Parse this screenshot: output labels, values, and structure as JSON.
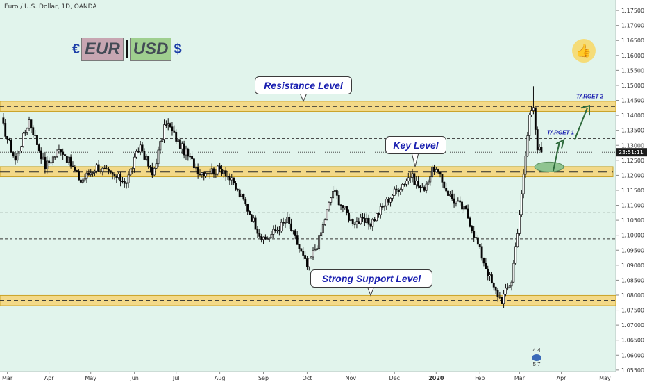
{
  "header": {
    "title": "Euro / U.S. Dollar, 1D, OANDA"
  },
  "logo": {
    "euro_symbol": "€",
    "base": "EUR",
    "quote": "USD",
    "dollar_symbol": "$"
  },
  "icons": {
    "like": "thumbs-up-icon",
    "emblem": "emblem-icon"
  },
  "emblem": {
    "line1": "4 4",
    "line2": "5 7"
  },
  "colors": {
    "background": "#e1f4ec",
    "up_candle": "#ffffff",
    "down_candle": "#000000",
    "zone_fill": "#f3d988",
    "zone_border": "#c9a227",
    "callout_text": "#1a1fb0",
    "arrow": "#2e6b3c",
    "target_zone": "#8fc490"
  },
  "chart_data": {
    "type": "candlestick",
    "symbol": "EURUSD",
    "timeframe": "1D",
    "source": "OANDA",
    "ylim": [
      1.0545,
      1.1785
    ],
    "y_ticks": [
      "1.17500",
      "1.17000",
      "1.16500",
      "1.16000",
      "1.15500",
      "1.15000",
      "1.14500",
      "1.14000",
      "1.13500",
      "1.13000",
      "1.12500",
      "1.12000",
      "1.11500",
      "1.11000",
      "1.10500",
      "1.10000",
      "1.09500",
      "1.09000",
      "1.08500",
      "1.08000",
      "1.07500",
      "1.07000",
      "1.06500",
      "1.06000",
      "1.05500"
    ],
    "x_ticks": [
      "Mar",
      "Apr",
      "May",
      "Jun",
      "Jul",
      "Aug",
      "Sep",
      "Oct",
      "Nov",
      "Dec",
      "2020",
      "Feb",
      "Mar",
      "Apr",
      "May"
    ],
    "x_tick_index": [
      3,
      24,
      45,
      67,
      88,
      110,
      132,
      154,
      176,
      198,
      219,
      241,
      261,
      282,
      304
    ],
    "last_price_label": "23:51:11",
    "last_price": 1.1277,
    "levels": [
      {
        "label": "Resistance Level",
        "price_low": 1.142,
        "price_high": 1.144,
        "dashed": true
      },
      {
        "label": "Key Level",
        "price_low": 1.1202,
        "price_high": 1.1222,
        "dashed": true
      },
      {
        "label": "Strong Support Level",
        "price_low": 1.0772,
        "price_high": 1.0792,
        "dashed": true
      }
    ],
    "dashed_lines": [
      1.1323,
      1.1075,
      1.0988
    ],
    "targets": [
      {
        "label": "TARGET 1",
        "price": 1.1323
      },
      {
        "label": "TARGET 2",
        "price": 1.1438
      }
    ],
    "anchors": [
      [
        0,
        1.138
      ],
      [
        7,
        1.125
      ],
      [
        14,
        1.1385
      ],
      [
        22,
        1.123
      ],
      [
        30,
        1.129
      ],
      [
        40,
        1.118
      ],
      [
        48,
        1.123
      ],
      [
        55,
        1.12
      ],
      [
        63,
        1.118
      ],
      [
        70,
        1.13
      ],
      [
        76,
        1.12
      ],
      [
        83,
        1.138
      ],
      [
        90,
        1.13
      ],
      [
        100,
        1.121
      ],
      [
        112,
        1.122
      ],
      [
        122,
        1.1115
      ],
      [
        132,
        1.098
      ],
      [
        144,
        1.105
      ],
      [
        154,
        1.0895
      ],
      [
        160,
        1.0985
      ],
      [
        167,
        1.115
      ],
      [
        176,
        1.105
      ],
      [
        186,
        1.104
      ],
      [
        196,
        1.113
      ],
      [
        206,
        1.12
      ],
      [
        212,
        1.115
      ],
      [
        218,
        1.1225
      ],
      [
        226,
        1.113
      ],
      [
        234,
        1.108
      ],
      [
        241,
        1.095
      ],
      [
        248,
        1.082
      ],
      [
        252,
        1.0785
      ],
      [
        257,
        1.085
      ],
      [
        262,
        1.113
      ],
      [
        266,
        1.14
      ],
      [
        268,
        1.144
      ],
      [
        270,
        1.129
      ],
      [
        272,
        1.1277
      ]
    ]
  }
}
